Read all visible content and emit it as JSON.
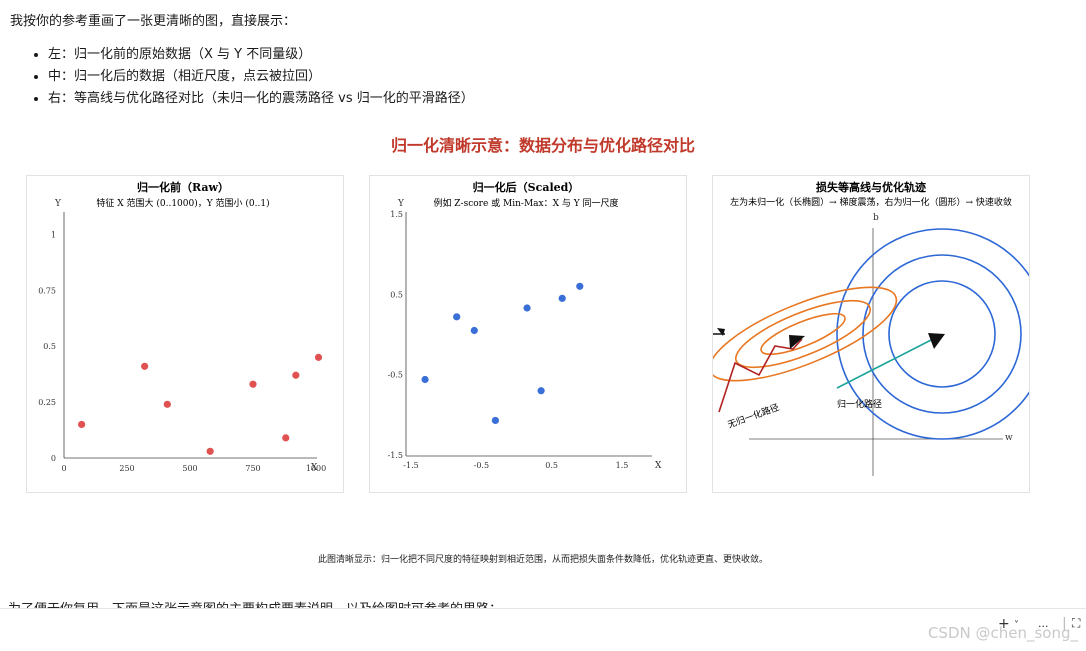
{
  "intro": "我按你的参考重画了一张更清晰的图，直接展示：",
  "bullets": [
    "左：归一化前的原始数据（X 与 Y 不同量级）",
    "中：归一化后的数据（相近尺度，点云被拉回）",
    "右：等高线与优化路径对比（未归一化的震荡路径 vs 归一化的平滑路径）"
  ],
  "figure_title": "归一化清晰示意：数据分布与优化路径对比",
  "colors": {
    "title_red": "#c0392b",
    "raw_points": "#e05252",
    "scaled_points": "#3b6fd8",
    "ellipse": "#e87722",
    "circle": "#2c67d6",
    "zigzag": "#b22222",
    "smooth_path": "#1aa39a"
  },
  "chart_data": [
    {
      "type": "scatter",
      "title": "归一化前（Raw）",
      "subtitle": "特征 X 范围大 (0..1000)，Y 范围小 (0..1)",
      "xlabel": "X",
      "ylabel": "Y",
      "xlim": [
        0,
        1000
      ],
      "ylim": [
        0,
        1.1
      ],
      "x_ticks": [
        "0",
        "250",
        "500",
        "750",
        "1000"
      ],
      "y_ticks": [
        "0",
        "0.25",
        "0.5",
        "0.75",
        "1"
      ],
      "points": [
        [
          70,
          0.15
        ],
        [
          320,
          0.41
        ],
        [
          410,
          0.24
        ],
        [
          580,
          0.03
        ],
        [
          750,
          0.33
        ],
        [
          920,
          0.37
        ],
        [
          1010,
          0.45
        ],
        [
          880,
          0.09
        ]
      ]
    },
    {
      "type": "scatter",
      "title": "归一化后（Scaled）",
      "subtitle": "例如 Z-score 或 Min-Max：X 与 Y 同一尺度",
      "xlabel": "X",
      "ylabel": "Y",
      "xlim": [
        -1.5,
        1.5
      ],
      "ylim": [
        -1.5,
        1.5
      ],
      "x_ticks": [
        "-1.5",
        "-0.5",
        "0.5",
        "1.5"
      ],
      "y_ticks": [
        "-1.5",
        "-0.5",
        "0.5",
        "1.5"
      ],
      "points": [
        [
          -1.3,
          -0.56
        ],
        [
          -0.85,
          0.22
        ],
        [
          -0.6,
          0.05
        ],
        [
          -0.3,
          -1.07
        ],
        [
          0.15,
          0.33
        ],
        [
          0.35,
          -0.7
        ],
        [
          0.65,
          0.45
        ],
        [
          0.9,
          0.6
        ]
      ]
    },
    {
      "type": "diagram",
      "title": "损失等高线与优化轨迹",
      "subtitle": "左为未归一化（长椭圆）→ 梯度震荡，右为归一化（圆形）→ 快速收敛",
      "xlabel": "w",
      "ylabel": "b",
      "label_zigzag": "无归一化路径",
      "label_smooth": "归一化路径"
    }
  ],
  "caption": "此图清晰显示：归一化把不同尺度的特征映射到相近范围，从而把损失面条件数降低，优化轨迹更直、更快收敛。",
  "cut_text": "为了便于你复用，下面是这张示意图的主要构成要素说明，以及绘图时可参考的思路：",
  "toolbar": {
    "plus": "+",
    "chev": "˅",
    "more": "···",
    "sep": "|",
    "expand": "⛶"
  },
  "watermark": "CSDN @chen_song_"
}
